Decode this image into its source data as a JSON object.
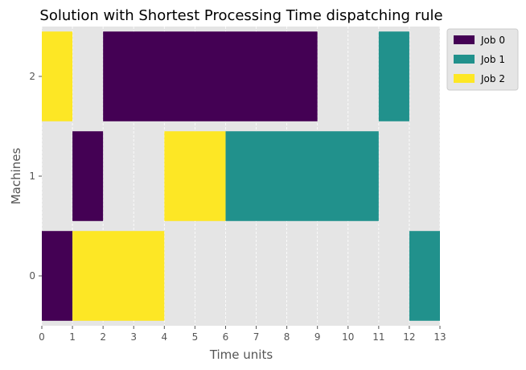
{
  "chart_data": {
    "type": "gantt",
    "title": "Solution with Shortest Processing Time dispatching rule",
    "xlabel": "Time units",
    "ylabel": "Machines",
    "xlim": [
      0,
      13
    ],
    "x_ticks": [
      "0",
      "1",
      "2",
      "3",
      "4",
      "5",
      "6",
      "7",
      "8",
      "9",
      "10",
      "11",
      "12",
      "13"
    ],
    "y_categories": [
      "0",
      "1",
      "2"
    ],
    "grid": true,
    "legend_position": "top-right-outside",
    "series": [
      {
        "name": "Job 0",
        "color": "#440154",
        "tasks": [
          {
            "machine": "0",
            "start": 0,
            "end": 1
          },
          {
            "machine": "1",
            "start": 1,
            "end": 2
          },
          {
            "machine": "2",
            "start": 2,
            "end": 9
          }
        ]
      },
      {
        "name": "Job 1",
        "color": "#21918c",
        "tasks": [
          {
            "machine": "1",
            "start": 6,
            "end": 11
          },
          {
            "machine": "2",
            "start": 11,
            "end": 12
          },
          {
            "machine": "0",
            "start": 12,
            "end": 13
          }
        ]
      },
      {
        "name": "Job 2",
        "color": "#fde725",
        "tasks": [
          {
            "machine": "2",
            "start": 0,
            "end": 1
          },
          {
            "machine": "0",
            "start": 1,
            "end": 4
          },
          {
            "machine": "1",
            "start": 4,
            "end": 6
          }
        ]
      }
    ]
  }
}
